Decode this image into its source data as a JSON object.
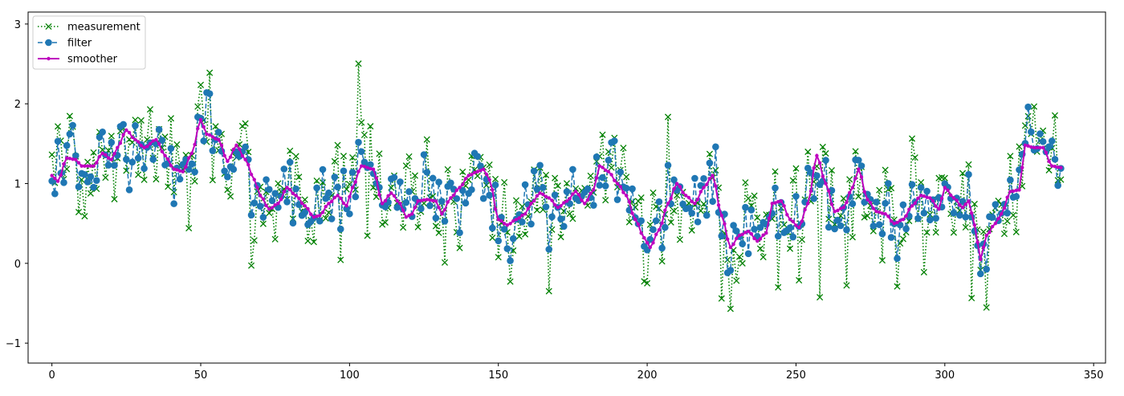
{
  "chart_data": {
    "type": "line",
    "title": "",
    "xlabel": "",
    "ylabel": "",
    "xlim": [
      -8,
      354
    ],
    "ylim": [
      -1.25,
      3.15
    ],
    "xticks": [
      0,
      50,
      100,
      150,
      200,
      250,
      300,
      350
    ],
    "yticks": [
      -1,
      0,
      1,
      2,
      3
    ],
    "xtick_labels": [
      "0",
      "50",
      "100",
      "150",
      "200",
      "250",
      "300",
      "350"
    ],
    "ytick_labels": [
      "−1",
      "0",
      "1",
      "2",
      "3"
    ],
    "legend_position": "top-left",
    "grid": false,
    "series": [
      {
        "name": "measurement",
        "color": "#008000",
        "linestyle": "dotted",
        "marker": "x"
      },
      {
        "name": "filter",
        "color": "#1f77b4",
        "linestyle": "dashed",
        "marker": "o"
      },
      {
        "name": "smoother",
        "color": "#bf00bf",
        "linestyle": "solid",
        "marker": "."
      }
    ],
    "smoother_anchors": [
      [
        0,
        1.1
      ],
      [
        2,
        1.03
      ],
      [
        5,
        1.32
      ],
      [
        8,
        1.3
      ],
      [
        10,
        1.22
      ],
      [
        14,
        1.22
      ],
      [
        17,
        1.38
      ],
      [
        20,
        1.3
      ],
      [
        22,
        1.45
      ],
      [
        25,
        1.67
      ],
      [
        28,
        1.55
      ],
      [
        31,
        1.45
      ],
      [
        35,
        1.55
      ],
      [
        38,
        1.35
      ],
      [
        41,
        1.18
      ],
      [
        44,
        1.15
      ],
      [
        47,
        1.38
      ],
      [
        50,
        1.8
      ],
      [
        52,
        1.62
      ],
      [
        56,
        1.55
      ],
      [
        59,
        1.28
      ],
      [
        62,
        1.48
      ],
      [
        65,
        1.3
      ],
      [
        68,
        1.05
      ],
      [
        70,
        0.85
      ],
      [
        73,
        0.68
      ],
      [
        76,
        0.75
      ],
      [
        79,
        0.95
      ],
      [
        82,
        0.85
      ],
      [
        85,
        0.72
      ],
      [
        88,
        0.58
      ],
      [
        90,
        0.6
      ],
      [
        93,
        0.75
      ],
      [
        96,
        0.85
      ],
      [
        99,
        0.72
      ],
      [
        101,
        0.95
      ],
      [
        104,
        1.22
      ],
      [
        108,
        1.18
      ],
      [
        111,
        0.75
      ],
      [
        114,
        0.88
      ],
      [
        117,
        0.75
      ],
      [
        119,
        0.58
      ],
      [
        121,
        0.62
      ],
      [
        123,
        0.78
      ],
      [
        126,
        0.8
      ],
      [
        129,
        0.78
      ],
      [
        131,
        0.62
      ],
      [
        134,
        0.82
      ],
      [
        137,
        0.95
      ],
      [
        140,
        1.1
      ],
      [
        143,
        1.15
      ],
      [
        145,
        1.18
      ],
      [
        147,
        1.05
      ],
      [
        150,
        0.55
      ],
      [
        153,
        0.48
      ],
      [
        156,
        0.55
      ],
      [
        159,
        0.62
      ],
      [
        161,
        0.75
      ],
      [
        164,
        0.88
      ],
      [
        167,
        0.82
      ],
      [
        170,
        0.7
      ],
      [
        173,
        0.78
      ],
      [
        176,
        0.9
      ],
      [
        179,
        0.75
      ],
      [
        182,
        0.92
      ],
      [
        184,
        1.22
      ],
      [
        187,
        1.15
      ],
      [
        190,
        1.0
      ],
      [
        193,
        0.85
      ],
      [
        196,
        0.55
      ],
      [
        199,
        0.32
      ],
      [
        201,
        0.2
      ],
      [
        204,
        0.42
      ],
      [
        207,
        0.75
      ],
      [
        210,
        1.0
      ],
      [
        213,
        0.85
      ],
      [
        216,
        0.75
      ],
      [
        219,
        0.95
      ],
      [
        222,
        1.1
      ],
      [
        225,
        0.6
      ],
      [
        228,
        0.2
      ],
      [
        231,
        0.35
      ],
      [
        234,
        0.4
      ],
      [
        237,
        0.28
      ],
      [
        240,
        0.38
      ],
      [
        242,
        0.75
      ],
      [
        245,
        0.78
      ],
      [
        248,
        0.55
      ],
      [
        251,
        0.45
      ],
      [
        254,
        0.75
      ],
      [
        257,
        1.35
      ],
      [
        260,
        1.0
      ],
      [
        263,
        0.65
      ],
      [
        266,
        0.7
      ],
      [
        269,
        0.95
      ],
      [
        271,
        1.18
      ],
      [
        274,
        0.8
      ],
      [
        277,
        0.65
      ],
      [
        280,
        0.62
      ],
      [
        283,
        0.5
      ],
      [
        286,
        0.55
      ],
      [
        289,
        0.72
      ],
      [
        292,
        0.85
      ],
      [
        295,
        0.82
      ],
      [
        298,
        0.68
      ],
      [
        300,
        0.95
      ],
      [
        303,
        0.82
      ],
      [
        306,
        0.7
      ],
      [
        308,
        0.78
      ],
      [
        310,
        0.48
      ],
      [
        312,
        0.05
      ],
      [
        314,
        0.35
      ],
      [
        317,
        0.5
      ],
      [
        319,
        0.62
      ],
      [
        322,
        0.9
      ],
      [
        325,
        0.92
      ],
      [
        327,
        1.48
      ],
      [
        330,
        1.45
      ],
      [
        333,
        1.45
      ],
      [
        336,
        1.22
      ],
      [
        339,
        1.2
      ]
    ],
    "noise_seed": 7,
    "points_count": 340,
    "filter_noise_sd": 0.22,
    "measurement_noise_sd": 0.3
  }
}
